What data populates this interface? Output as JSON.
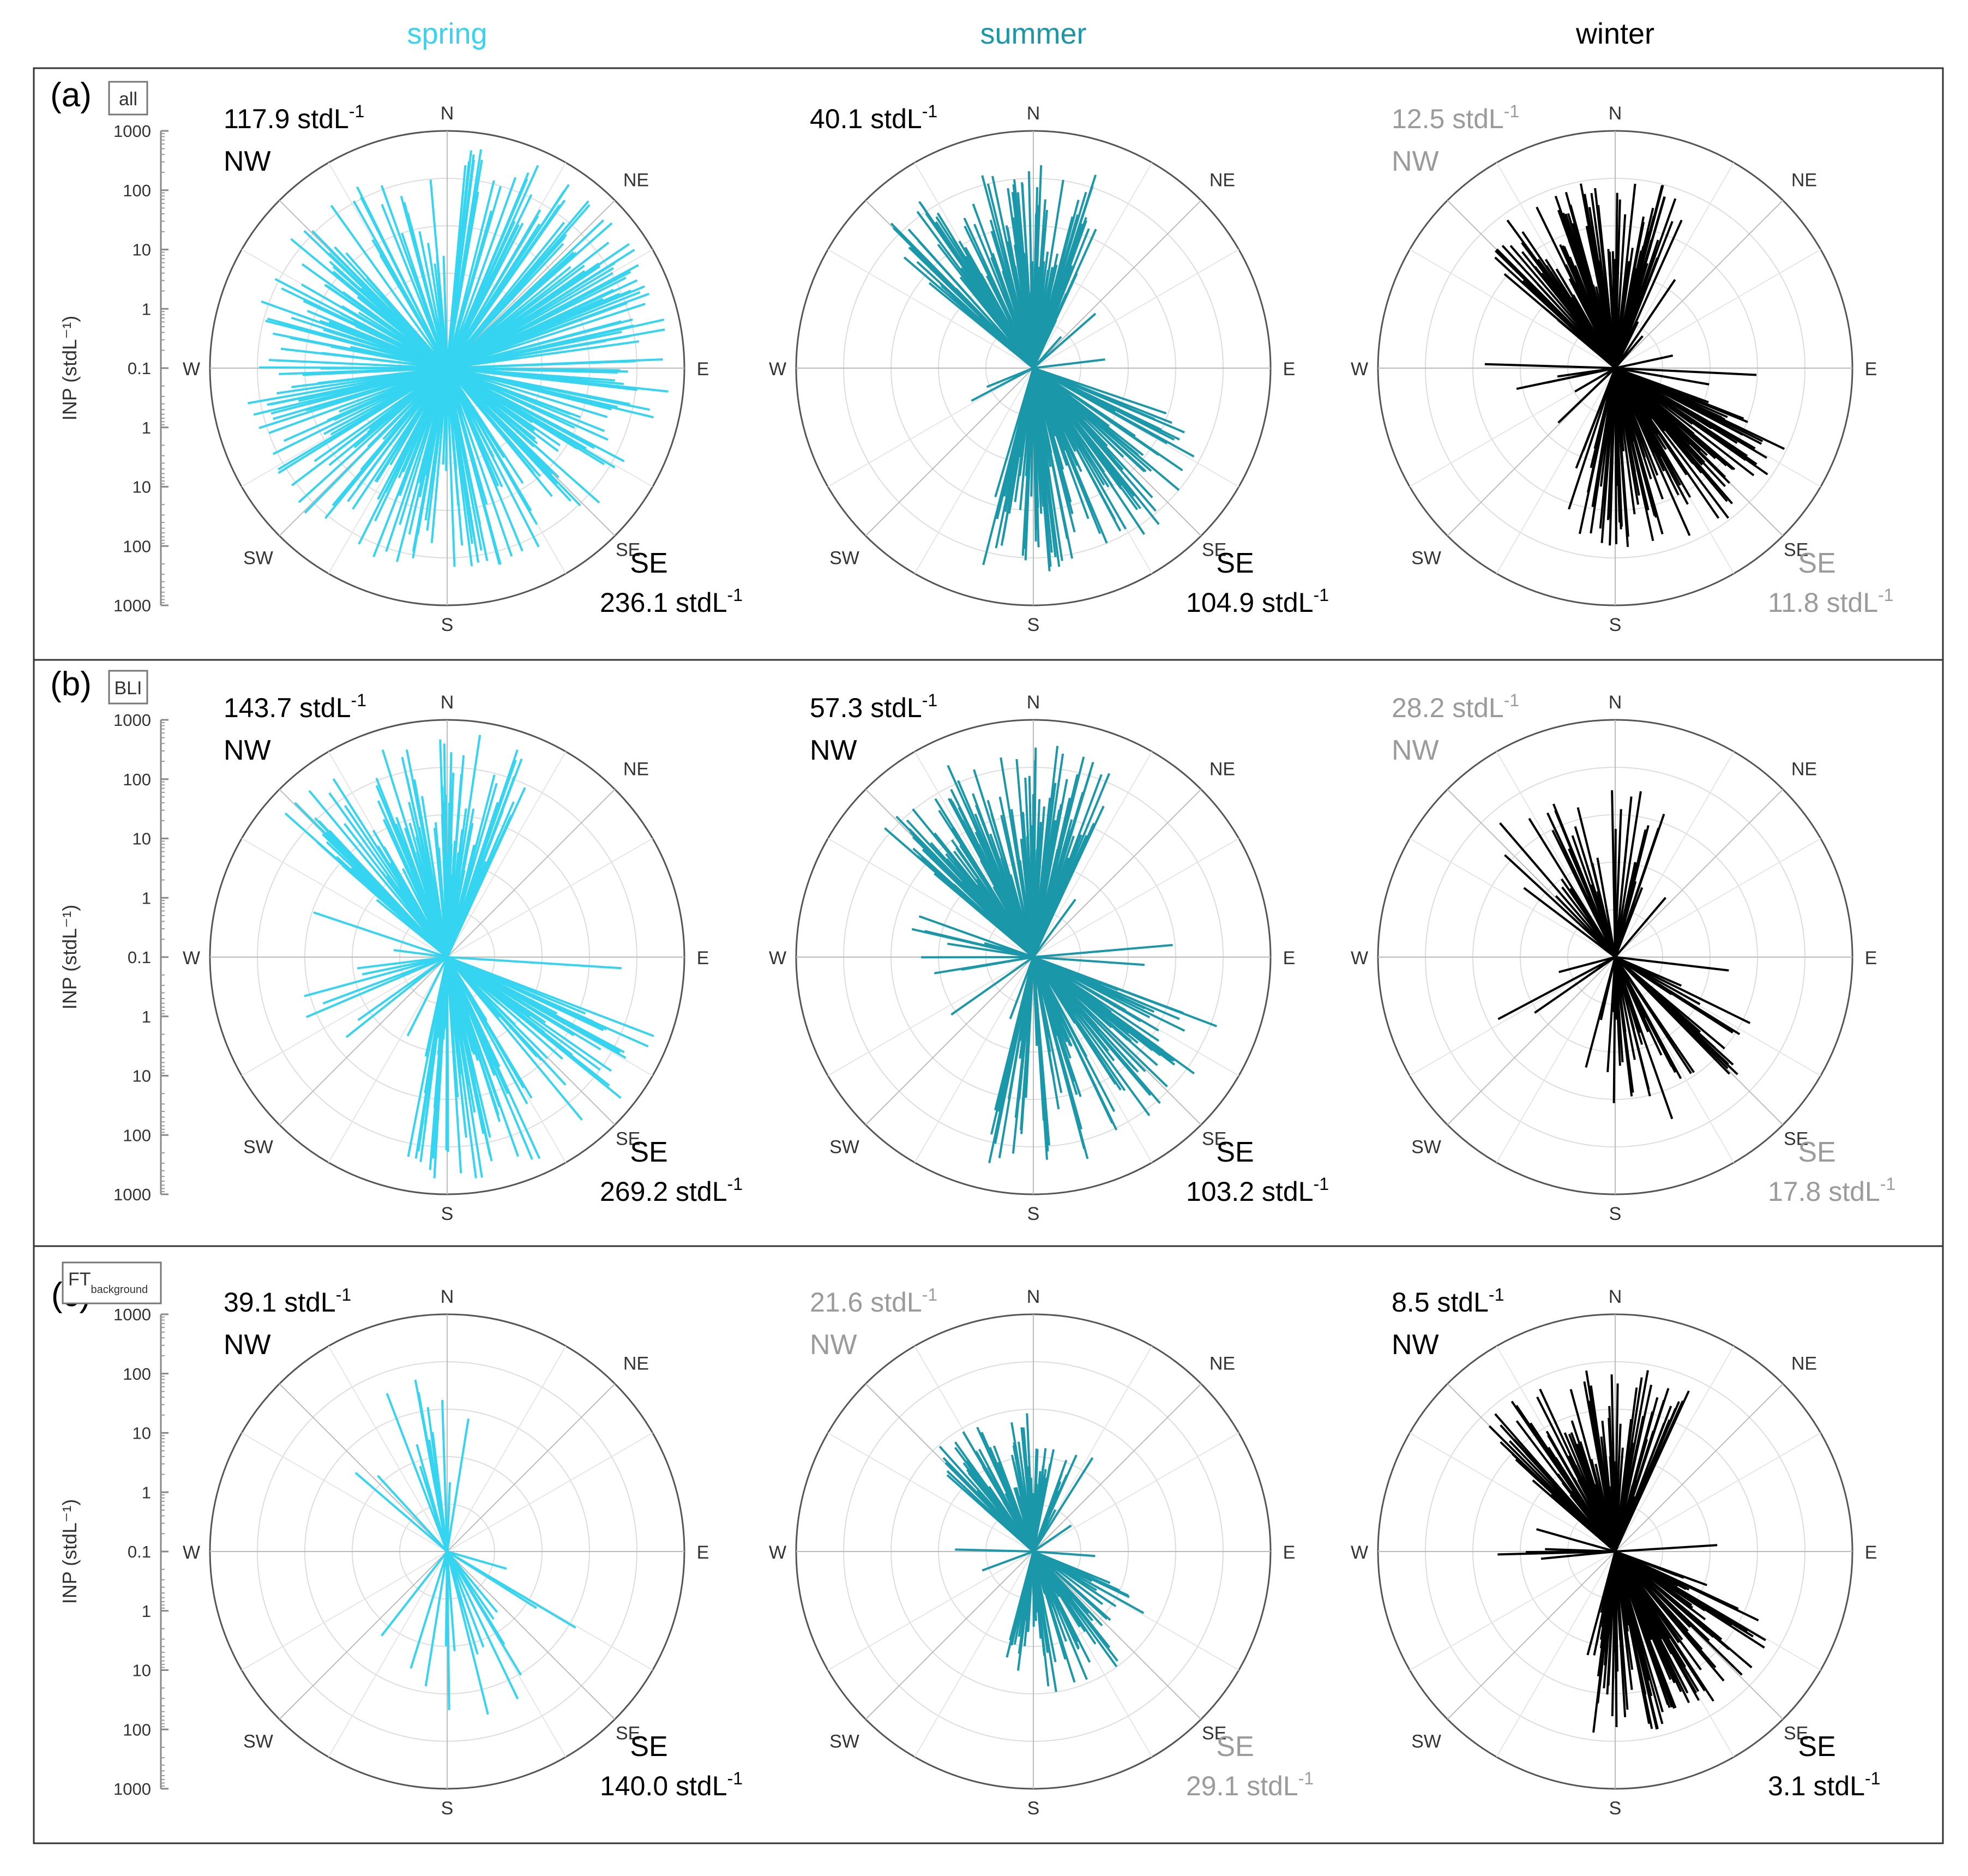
{
  "chart_data": {
    "type": "polar-bar",
    "title": "",
    "seasons": [
      {
        "name": "spring",
        "color": "#35D4F0"
      },
      {
        "name": "summer",
        "color": "#1A97A8"
      },
      {
        "name": "winter",
        "color": "#000000"
      }
    ],
    "ylabel": "INP (stdL⁻¹)",
    "axis_ticks": [
      "1000",
      "100",
      "10",
      "1",
      "0.1",
      "1",
      "10",
      "100",
      "1000"
    ],
    "directions": [
      "N",
      "NE",
      "E",
      "SE",
      "S",
      "SW",
      "W",
      "NW"
    ],
    "compass_labels": [
      "N",
      "NE",
      "E",
      "SE",
      "S",
      "SW",
      "W"
    ],
    "ring_values": [
      0.1,
      1,
      10,
      100,
      1000
    ],
    "label_colors": {
      "highlight": "#000000",
      "muted": "#9B9B9B"
    },
    "rows": [
      {
        "letter": "(a)",
        "box": "all",
        "box_main": "all",
        "box_sub": "",
        "panels": [
          {
            "season": "spring",
            "nw_value": "117.9",
            "nw_dir": "NW",
            "nw_muted": false,
            "se_value": "236.1",
            "se_dir": "SE",
            "se_muted": false,
            "unit": "stdL",
            "exp": "-1",
            "density": 300,
            "mode": "dense",
            "max_r": 0.96
          },
          {
            "season": "summer",
            "nw_value": "40.1",
            "nw_dir": "",
            "nw_muted": false,
            "se_value": "104.9",
            "se_dir": "SE",
            "se_muted": false,
            "unit": "stdL",
            "exp": "-1",
            "density": 260,
            "mode": "nwse",
            "max_r": 0.86
          },
          {
            "season": "winter",
            "nw_value": "12.5",
            "nw_dir": "NW",
            "nw_muted": true,
            "se_value": "11.8",
            "se_dir": "SE",
            "se_muted": true,
            "unit": "stdL",
            "exp": "-1",
            "density": 260,
            "mode": "nwse",
            "max_r": 0.8
          }
        ]
      },
      {
        "letter": "(b)",
        "box": "BLI",
        "box_main": "BLI",
        "box_sub": "",
        "panels": [
          {
            "season": "spring",
            "nw_value": "143.7",
            "nw_dir": "NW",
            "nw_muted": false,
            "se_value": "269.2",
            "se_dir": "SE",
            "se_muted": false,
            "unit": "stdL",
            "exp": "-1",
            "density": 220,
            "mode": "nwse",
            "max_r": 0.95
          },
          {
            "season": "summer",
            "nw_value": "57.3",
            "nw_dir": "NW",
            "nw_muted": false,
            "se_value": "103.2",
            "se_dir": "SE",
            "se_muted": false,
            "unit": "stdL",
            "exp": "-1",
            "density": 240,
            "mode": "nwse",
            "max_r": 0.9
          },
          {
            "season": "winter",
            "nw_value": "28.2",
            "nw_dir": "NW",
            "nw_muted": true,
            "se_value": "17.8",
            "se_dir": "SE",
            "se_muted": true,
            "unit": "stdL",
            "exp": "-1",
            "density": 90,
            "mode": "nwse",
            "max_r": 0.75
          }
        ]
      },
      {
        "letter": "(c)",
        "box": "FT background",
        "box_main": "FT",
        "box_sub": "background",
        "panels": [
          {
            "season": "spring",
            "nw_value": "39.1",
            "nw_dir": "NW",
            "nw_muted": false,
            "se_value": "140.0",
            "se_dir": "SE",
            "se_muted": false,
            "unit": "stdL",
            "exp": "-1",
            "density": 30,
            "mode": "nwse",
            "max_r": 0.78
          },
          {
            "season": "summer",
            "nw_value": "21.6",
            "nw_dir": "NW",
            "nw_muted": true,
            "se_value": "29.1",
            "se_dir": "SE",
            "se_muted": true,
            "unit": "stdL",
            "exp": "-1",
            "density": 160,
            "mode": "nwse",
            "max_r": 0.6
          },
          {
            "season": "winter",
            "nw_value": "8.5",
            "nw_dir": "NW",
            "nw_muted": false,
            "se_value": "3.1",
            "se_dir": "SE",
            "se_muted": false,
            "unit": "stdL",
            "exp": "-1",
            "density": 240,
            "mode": "nwse",
            "max_r": 0.78
          }
        ]
      }
    ]
  }
}
